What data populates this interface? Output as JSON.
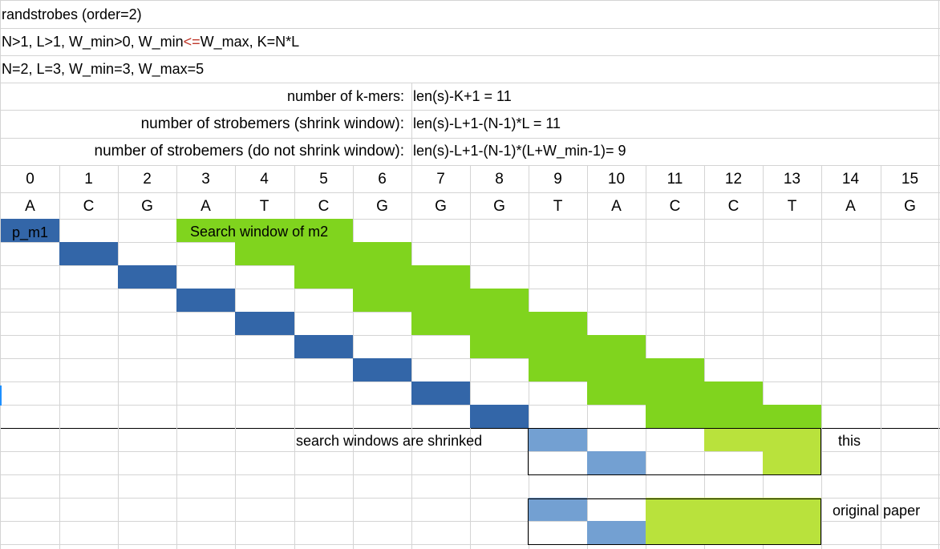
{
  "header": {
    "title": "randstrobes (order=2)",
    "constraints_pre": "N>1, L>1, W_min>0, W_min",
    "constraints_op": "<=",
    "constraints_post": "W_max, K=N*L",
    "params": "N=2, L=3, W_min=3, W_max=5"
  },
  "counts": [
    {
      "label": "number of k-mers:",
      "formula": "len(s)-K+1 = 11"
    },
    {
      "label": "number of strobemers (shrink window):",
      "formula": "len(s)-L+1-(N-1)*L = 11"
    },
    {
      "label": "number of strobemers (do not shrink window):",
      "formula": "len(s)-L+1-(N-1)*(L+W_min-1)= 9"
    }
  ],
  "indices": [
    "0",
    "1",
    "2",
    "3",
    "4",
    "5",
    "6",
    "7",
    "8",
    "9",
    "10",
    "11",
    "12",
    "13",
    "14",
    "15"
  ],
  "sequence": [
    "A",
    "C",
    "G",
    "A",
    "T",
    "C",
    "G",
    "G",
    "G",
    "T",
    "A",
    "C",
    "C",
    "T",
    "A",
    "G"
  ],
  "labels": {
    "p_m1": "p_m1",
    "search_window": "Search window of m2",
    "shrink_note": "search windows are shrinked",
    "this": "this",
    "original": "original paper"
  },
  "colors": {
    "strobe1": "#3366a8",
    "window": "#80d41e",
    "strobe1_light": "#73a0d2",
    "window_light": "#b9e23c"
  },
  "diagram": {
    "main_rows": [
      {
        "blue": 0,
        "green": [
          3,
          4,
          5
        ]
      },
      {
        "blue": 1,
        "green": [
          4,
          5,
          6
        ]
      },
      {
        "blue": 2,
        "green": [
          5,
          6,
          7
        ]
      },
      {
        "blue": 3,
        "green": [
          6,
          7,
          8
        ]
      },
      {
        "blue": 4,
        "green": [
          7,
          8,
          9
        ]
      },
      {
        "blue": 5,
        "green": [
          8,
          9,
          10
        ]
      },
      {
        "blue": 6,
        "green": [
          9,
          10,
          11
        ]
      },
      {
        "blue": 7,
        "green": [
          10,
          11,
          12
        ]
      },
      {
        "blue": 8,
        "green": [
          11,
          12,
          13
        ]
      }
    ],
    "this_rows": [
      {
        "blue": 9,
        "green": [
          12,
          13
        ]
      },
      {
        "blue": 10,
        "green": [
          13
        ]
      }
    ],
    "orig_rows": [
      {
        "blue": 9,
        "green": [
          11,
          12,
          13
        ]
      },
      {
        "blue": 10,
        "green": [
          11,
          12,
          13
        ]
      }
    ]
  }
}
